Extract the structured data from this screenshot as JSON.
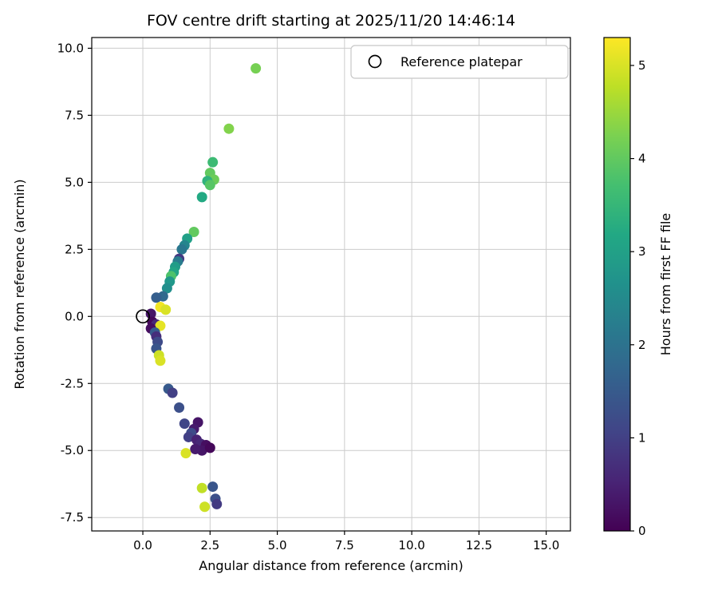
{
  "title": "FOV centre drift starting at 2025/11/20 14:46:14",
  "legend": {
    "label": "Reference platepar"
  },
  "colorbar": {
    "label": "Hours from first FF file",
    "tick_labels": [
      "0",
      "1",
      "2",
      "3",
      "4",
      "5"
    ],
    "tick_values": [
      0,
      1,
      2,
      3,
      4,
      5
    ],
    "min": 0,
    "max": 5.3
  },
  "axes": {
    "xtick_labels": [
      "0.0",
      "2.5",
      "5.0",
      "7.5",
      "10.0",
      "12.5",
      "15.0"
    ],
    "ytick_labels": [
      "-7.5",
      "-5.0",
      "-2.5",
      "0.0",
      "2.5",
      "5.0",
      "7.5",
      "10.0"
    ],
    "grid_color": "#cccccc",
    "frame_color": "#000000"
  },
  "chart_data": {
    "type": "scatter",
    "title": "FOV centre drift starting at 2025/11/20 14:46:14",
    "xlabel": "Angular distance from reference (arcmin)",
    "ylabel": "Rotation from reference (arcmin)",
    "xlim": [
      -1.9,
      15.9
    ],
    "ylim": [
      -8.0,
      10.4
    ],
    "xticks": [
      0.0,
      2.5,
      5.0,
      7.5,
      10.0,
      12.5,
      15.0
    ],
    "yticks": [
      -7.5,
      -5.0,
      -2.5,
      0.0,
      2.5,
      5.0,
      7.5,
      10.0
    ],
    "grid": true,
    "legend_position": "upper-right-inside",
    "colormap": "viridis",
    "color_dimension": "Hours from first FF file",
    "color_range": [
      0,
      5.3
    ],
    "reference_point": {
      "x": 0.0,
      "y": 0.0
    },
    "points": [
      {
        "x": 4.2,
        "y": 9.25,
        "h": 4.2
      },
      {
        "x": 3.2,
        "y": 7.0,
        "h": 4.3
      },
      {
        "x": 2.6,
        "y": 5.75,
        "h": 3.6
      },
      {
        "x": 2.5,
        "y": 5.35,
        "h": 4.0
      },
      {
        "x": 2.65,
        "y": 5.1,
        "h": 4.1
      },
      {
        "x": 2.4,
        "y": 5.05,
        "h": 3.4
      },
      {
        "x": 2.5,
        "y": 4.9,
        "h": 3.9
      },
      {
        "x": 2.2,
        "y": 4.45,
        "h": 3.2
      },
      {
        "x": 1.9,
        "y": 3.15,
        "h": 4.0
      },
      {
        "x": 1.65,
        "y": 2.9,
        "h": 3.0
      },
      {
        "x": 1.55,
        "y": 2.65,
        "h": 2.4
      },
      {
        "x": 1.45,
        "y": 2.5,
        "h": 2.1
      },
      {
        "x": 1.35,
        "y": 2.15,
        "h": 0.9
      },
      {
        "x": 1.3,
        "y": 2.05,
        "h": 2.2
      },
      {
        "x": 1.2,
        "y": 1.85,
        "h": 2.9
      },
      {
        "x": 1.15,
        "y": 1.65,
        "h": 3.1
      },
      {
        "x": 1.05,
        "y": 1.5,
        "h": 3.8
      },
      {
        "x": 1.0,
        "y": 1.3,
        "h": 2.8
      },
      {
        "x": 0.9,
        "y": 1.05,
        "h": 2.6
      },
      {
        "x": 0.75,
        "y": 0.75,
        "h": 1.8
      },
      {
        "x": 0.5,
        "y": 0.7,
        "h": 1.6
      },
      {
        "x": 0.65,
        "y": 0.35,
        "h": 5.2
      },
      {
        "x": 0.85,
        "y": 0.25,
        "h": 5.0
      },
      {
        "x": 0.3,
        "y": 0.1,
        "h": 0.3
      },
      {
        "x": 0.35,
        "y": -0.2,
        "h": 0.1
      },
      {
        "x": 0.5,
        "y": -0.3,
        "h": 0.6
      },
      {
        "x": 0.65,
        "y": -0.35,
        "h": 5.1
      },
      {
        "x": 0.3,
        "y": -0.45,
        "h": 0.2
      },
      {
        "x": 0.45,
        "y": -0.6,
        "h": 1.5
      },
      {
        "x": 0.5,
        "y": -0.75,
        "h": 0.7
      },
      {
        "x": 0.55,
        "y": -0.95,
        "h": 1.2
      },
      {
        "x": 0.5,
        "y": -1.2,
        "h": 1.4
      },
      {
        "x": 0.6,
        "y": -1.45,
        "h": 4.9
      },
      {
        "x": 0.65,
        "y": -1.65,
        "h": 5.0
      },
      {
        "x": 0.95,
        "y": -2.7,
        "h": 1.5
      },
      {
        "x": 1.1,
        "y": -2.85,
        "h": 1.0
      },
      {
        "x": 1.35,
        "y": -3.4,
        "h": 1.3
      },
      {
        "x": 1.55,
        "y": -4.0,
        "h": 1.1
      },
      {
        "x": 2.05,
        "y": -3.95,
        "h": 0.3
      },
      {
        "x": 1.9,
        "y": -4.2,
        "h": 0.4
      },
      {
        "x": 1.8,
        "y": -4.35,
        "h": 1.2
      },
      {
        "x": 1.7,
        "y": -4.5,
        "h": 1.0
      },
      {
        "x": 2.0,
        "y": -4.6,
        "h": 0.5
      },
      {
        "x": 2.15,
        "y": -4.75,
        "h": 0.6
      },
      {
        "x": 2.35,
        "y": -4.8,
        "h": 0.2
      },
      {
        "x": 2.2,
        "y": -5.0,
        "h": 0.3
      },
      {
        "x": 1.95,
        "y": -4.95,
        "h": 0.4
      },
      {
        "x": 1.6,
        "y": -5.1,
        "h": 5.0
      },
      {
        "x": 2.5,
        "y": -4.9,
        "h": 0.1
      },
      {
        "x": 2.2,
        "y": -6.4,
        "h": 4.8
      },
      {
        "x": 2.6,
        "y": -6.35,
        "h": 1.4
      },
      {
        "x": 2.7,
        "y": -6.8,
        "h": 1.3
      },
      {
        "x": 2.75,
        "y": -7.0,
        "h": 0.9
      },
      {
        "x": 2.3,
        "y": -7.1,
        "h": 4.9
      }
    ]
  }
}
